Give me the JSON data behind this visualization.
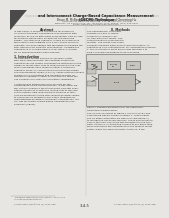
{
  "background_color": "#e8e6e2",
  "page_color": "#f2f0ec",
  "title_text": "and Interconnect Charge-Based Capacitance Measurement\n(CBCM) Technique",
  "title_fontsize": 2.5,
  "title_color": "#1a1a1a",
  "authors_text": "Bruce M. McBouglas, Damon Sylvester, and Cheoming Hu",
  "authors_fontsize": 2.0,
  "affil_line1": "University of California Berkeley, 515-47 Cory Hall #1770",
  "affil_line2": "Berkeley, Ca 94720-1770, Tel: (510)642-1770, Phone: (510) 643-0841",
  "affil_line3": "Email: pamela@icsl.eecs.berkeley.edu",
  "affil_fontsize": 1.7,
  "body_fontsize": 1.75,
  "section_fontsize": 2.2,
  "abstract_title": "Abstract",
  "abstract_lines": [
    "In this paper, a sensitive and simple technique for",
    "on-chip interconnect capacitance measurement with",
    "resolution as low as attofarads is presented. This on-chip",
    "technique is based upon an efficient and balanced",
    "design. The reference capacitor is used as a reference",
    "term limit to also mitigate only a DC current source in",
    "separate. We have applied this technique to measure the",
    "inter-interconnect parasitic capacitances, including the",
    "capacitance of a single Ring-3 Level Metal 1 running",
    "for an advanced silicon metal process."
  ],
  "intro_title": "1. Introduction",
  "intro_lines": [
    "As integrated circuits become increasingly faster",
    "with small interconnects, the resulting uncertainty",
    "capacitances are rapidly becoming the bottleneck in the",
    "design of circuit chips. Due to measurement in the chip,",
    "many techniques have relied on either a reference",
    "capacitor model or computational interconnect design",
    "and measurement range [1,2,3,4]. These methods usually",
    "require micro-voltmeters and transient analysis [6]",
    "become increasingly critical to characterize them can",
    "use currently only previous simulation capabilities.",
    "",
    "A method was introduced [5] to account for the",
    "performance of the above methods. In this paper we",
    "will not only measure the interconnect parasitic capa-",
    "citance structures at both the routing chip to the chip",
    "and to entirely new measurement schemes in total.",
    "This measurement of the interconnect parasitic capaci-",
    "to hybrid device making to more than otherwise by",
    "characterizing parasitic interconnect capacitances. We",
    "call this technique Charge-Based Capacitance Mea-",
    "surement (CBCM)."
  ],
  "footnote_lines": [
    "This work is supported by NSF contract II-1644-4 and",
    "IC center for MICRO program."
  ],
  "page_num": "3,4,5",
  "ieee_text": "0-7803-3561-0/96 $5.00 (C) 1996 IEEE",
  "right_section_title": "II. Methods",
  "right_body_lines": [
    "The experimental schematic",
    "consists of a pair of NMOS",
    "current in a \"dummy\" pa-",
    "ral tree with input inputs. The",
    "output monitor is a differential",
    "monitor. The circuit uses some",
    "currently measure interconnect CBCM technique. An",
    "capacitance as is characterized. For capacitance in Figure",
    "1, the full structure ment are include the Ring-1 to",
    "Ring-2 running capacitance to be measured."
  ],
  "fig_caption_lines": [
    "Figure 1. Proposed and structure for the interconnect",
    "capacitance characterization"
  ],
  "fig_body_lines": [
    "The Vn and Vp output of Figure 1 consists of two non-",
    "overlapping signals shown in Figure 1. These inputs",
    "can be either alternated off chip or in chip Figure 1)",
    "to include the advanced versions. These guarantees to",
    "assure that only one of the two transistors in the tran-",
    "sistor structure is conducting current at any given time",
    "when measuring the capacitance in the present circuit",
    "gated. When the PMOS transistor turns on, it will"
  ],
  "corner_dark_color": "#4a4a4a",
  "text_gray": "#303030",
  "text_light": "#555555",
  "line_color": "#999999"
}
